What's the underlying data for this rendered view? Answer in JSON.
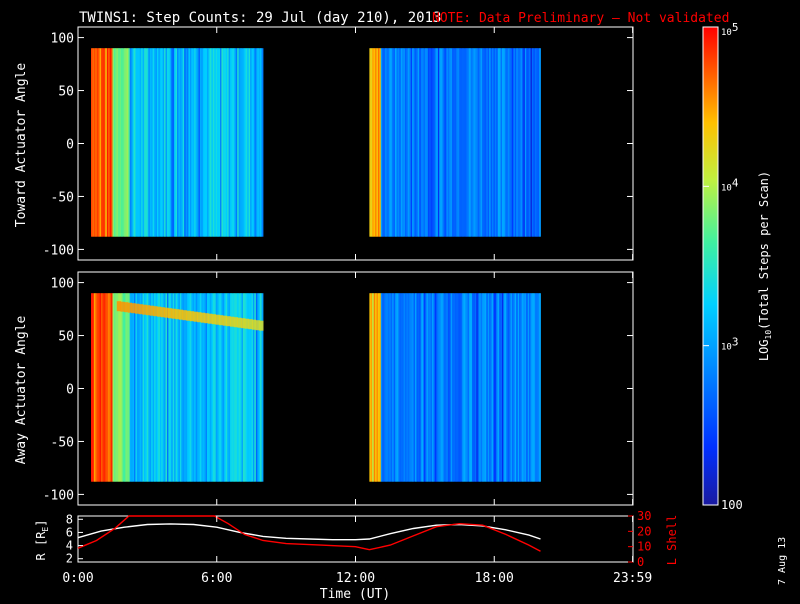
{
  "title": {
    "main": "TWINS1: Step Counts: 29 Jul (day 210), 2013",
    "note": "NOTE: Data Preliminary — Not validated"
  },
  "colors": {
    "background": "#000000",
    "axis": "#ffffff",
    "note": "#ff0000",
    "lshell": "#ff0000",
    "radius": "#ffffff"
  },
  "stamp": "7 Aug 13",
  "chart_data": [
    {
      "type": "heatmap",
      "name": "toward",
      "ylabel": "Toward Actuator Angle",
      "ylim": [
        -110,
        110
      ],
      "yticks": [
        "100",
        "50",
        "0",
        "-50",
        "-100"
      ],
      "ytick_values": [
        100,
        50,
        0,
        -50,
        -100
      ],
      "data_y_range": [
        -88,
        90
      ],
      "data_blocks_hours": [
        [
          0.0,
          8.0
        ],
        [
          12.6,
          20.0
        ]
      ],
      "xlim_hours": [
        0,
        24
      ]
    },
    {
      "type": "heatmap",
      "name": "away",
      "ylabel": "Away Actuator Angle",
      "ylim": [
        -110,
        110
      ],
      "yticks": [
        "100",
        "50",
        "0",
        "-50",
        "-100"
      ],
      "ytick_values": [
        100,
        50,
        0,
        -50,
        -100
      ],
      "data_y_range": [
        -88,
        90
      ],
      "data_blocks_hours": [
        [
          0.0,
          8.0
        ],
        [
          12.6,
          20.0
        ]
      ],
      "xlim_hours": [
        0,
        24
      ]
    },
    {
      "type": "line",
      "name": "orbit",
      "ylabel_left": "R [R",
      "ylabel_left_sub": "E",
      "ylabel_left_end": "]",
      "ylabel_right": "L Shell",
      "ylim_left": [
        1.5,
        8.5
      ],
      "yticks_left": [
        "8",
        "6",
        "4",
        "2"
      ],
      "ytick_left_values": [
        8,
        6,
        4,
        2
      ],
      "ylim_right": [
        0,
        30
      ],
      "yticks_right": [
        "30",
        "20",
        "10",
        "0"
      ],
      "ytick_right_values": [
        30,
        20,
        10,
        0
      ],
      "series": [
        {
          "axis": "left",
          "color": "#ffffff",
          "x": [
            0.0,
            1.0,
            2.0,
            3.0,
            4.0,
            5.0,
            6.0,
            7.0,
            8.0,
            9.0,
            10.0,
            11.0,
            12.0,
            12.6,
            13.5,
            14.5,
            15.5,
            16.5,
            17.5,
            18.5,
            19.5,
            20.0
          ],
          "y": [
            5.2,
            6.2,
            6.8,
            7.2,
            7.3,
            7.2,
            6.8,
            6.0,
            5.4,
            5.1,
            5.0,
            4.9,
            4.9,
            5.0,
            5.8,
            6.6,
            7.1,
            7.2,
            7.0,
            6.4,
            5.6,
            5.0
          ]
        },
        {
          "axis": "right",
          "color": "#ff0000",
          "x": [
            0.0,
            0.8,
            1.6,
            2.2,
            5.9,
            6.5,
            7.2,
            8.0,
            9.0,
            10.5,
            12.0,
            12.6,
            13.5,
            14.5,
            15.5,
            16.5,
            17.5,
            18.5,
            19.5,
            20.0
          ],
          "y": [
            9.0,
            14.0,
            22.0,
            30.0,
            30.0,
            25.0,
            18.0,
            14.0,
            12.0,
            11.0,
            10.0,
            8.0,
            11.0,
            17.0,
            23.0,
            25.0,
            24.0,
            18.0,
            11.0,
            7.0
          ]
        }
      ]
    }
  ],
  "xaxis": {
    "xlabel": "Time (UT)",
    "ticks": [
      "0:00",
      "6:00",
      "12:00",
      "18:00",
      "23:59"
    ],
    "tick_hours": [
      0,
      6,
      12,
      18,
      23.983
    ]
  },
  "colorbar": {
    "label_pre": "LOG",
    "label_sub": "10",
    "label_post": "(Total Steps per Scan)",
    "range_log": [
      2,
      5
    ],
    "ticks": [
      {
        "log": 5,
        "base": "10",
        "exp": "5"
      },
      {
        "log": 4,
        "base": "10",
        "exp": "4"
      },
      {
        "log": 3,
        "base": "10",
        "exp": "3"
      },
      {
        "log": 2,
        "base": "100",
        "exp": ""
      }
    ]
  }
}
